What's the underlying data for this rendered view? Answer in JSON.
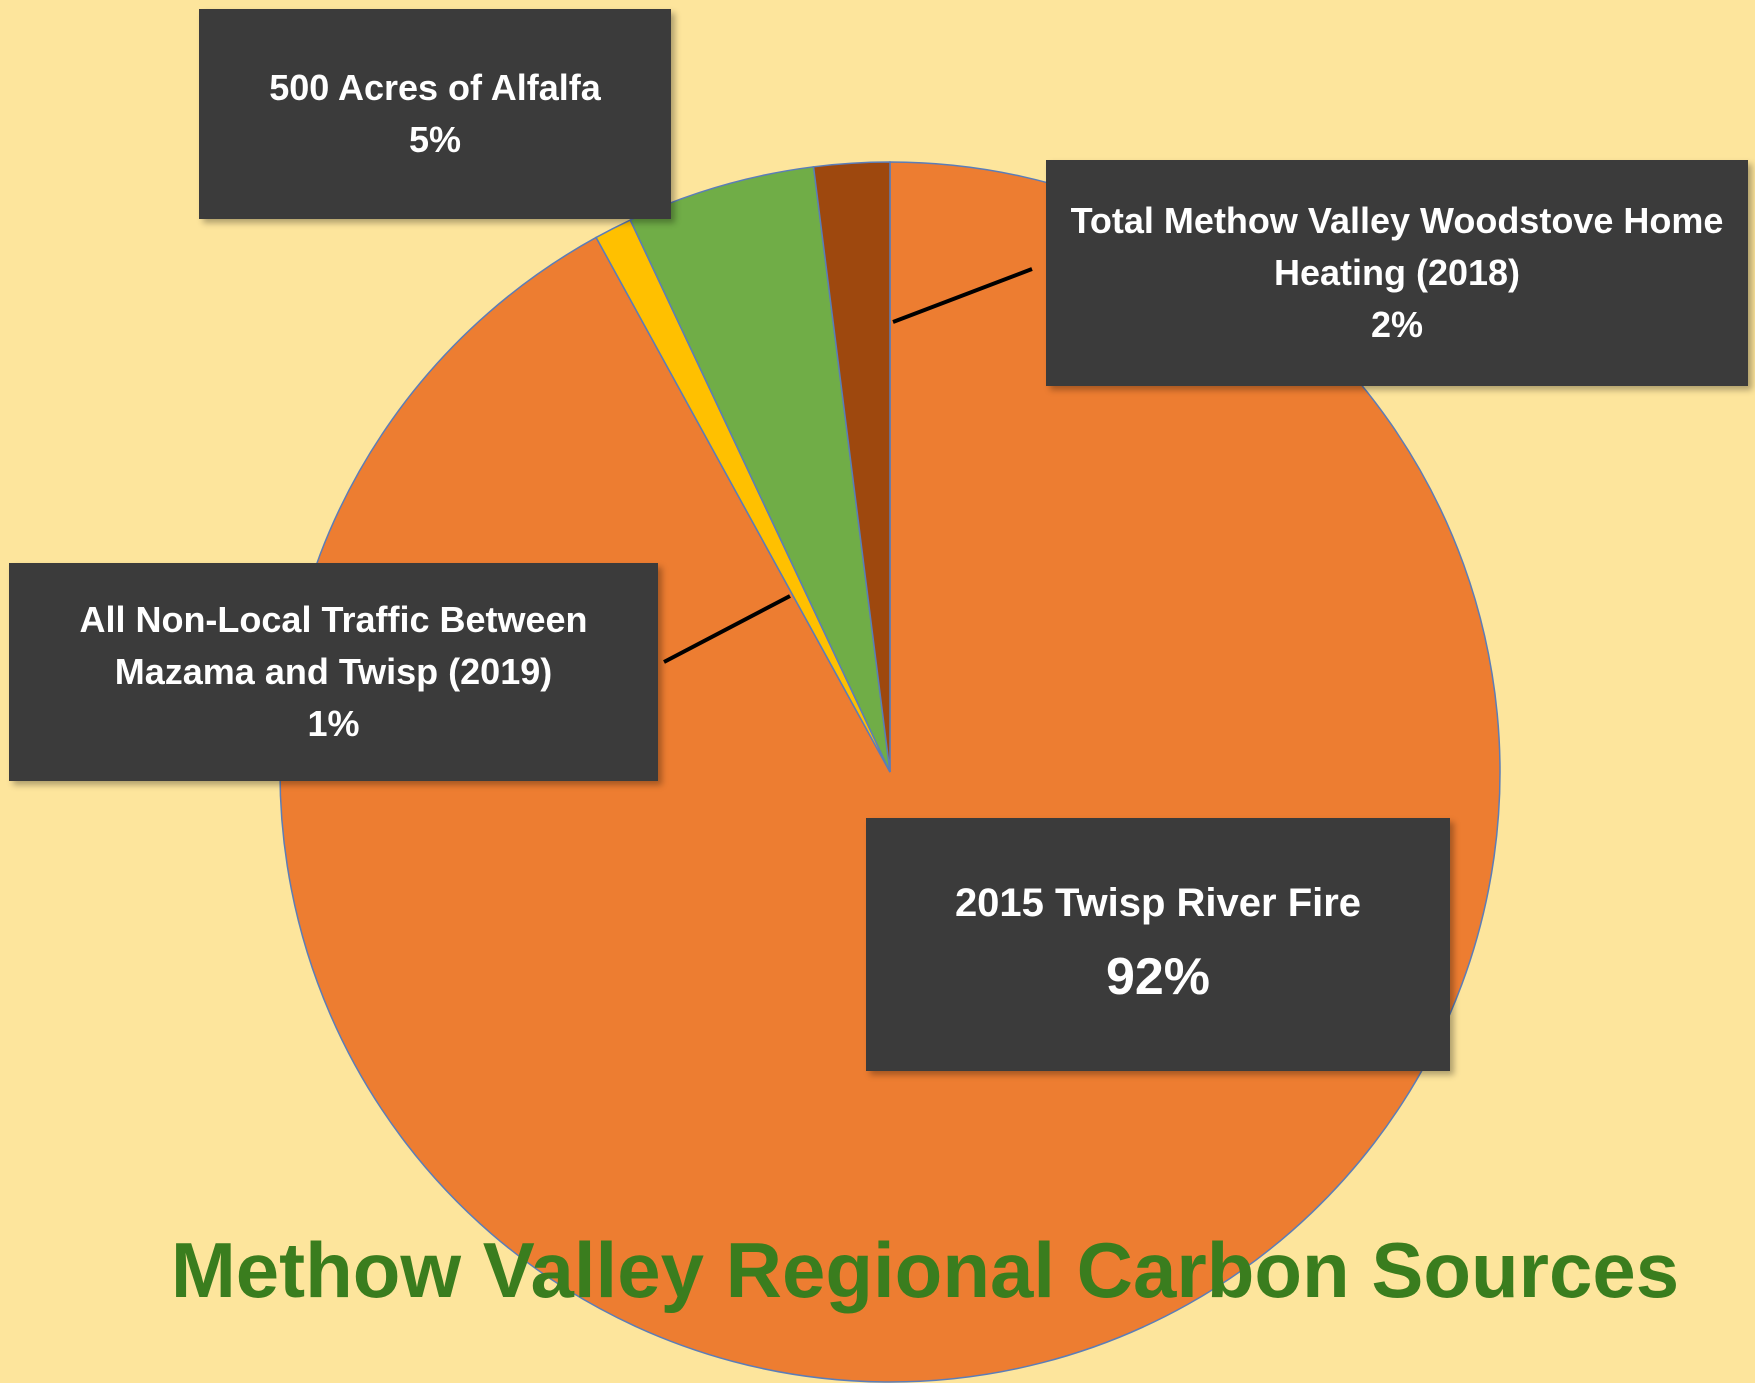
{
  "chart_data": {
    "type": "pie",
    "title": "Methow Valley Regional Carbon Sources",
    "categories": [
      "2015 Twisp River Fire",
      "All Non-Local Traffic Between Mazama and Twisp (2019)",
      "500 Acres of Alfalfa",
      "Total Methow Valley Woodstove Home Heating (2018)"
    ],
    "values": [
      92,
      1,
      5,
      2
    ],
    "value_labels": [
      "92%",
      "1%",
      "5%",
      "2%"
    ],
    "colors": [
      "#ed7d31",
      "#ffc000",
      "#70ad47",
      "#9e480e"
    ]
  }
}
